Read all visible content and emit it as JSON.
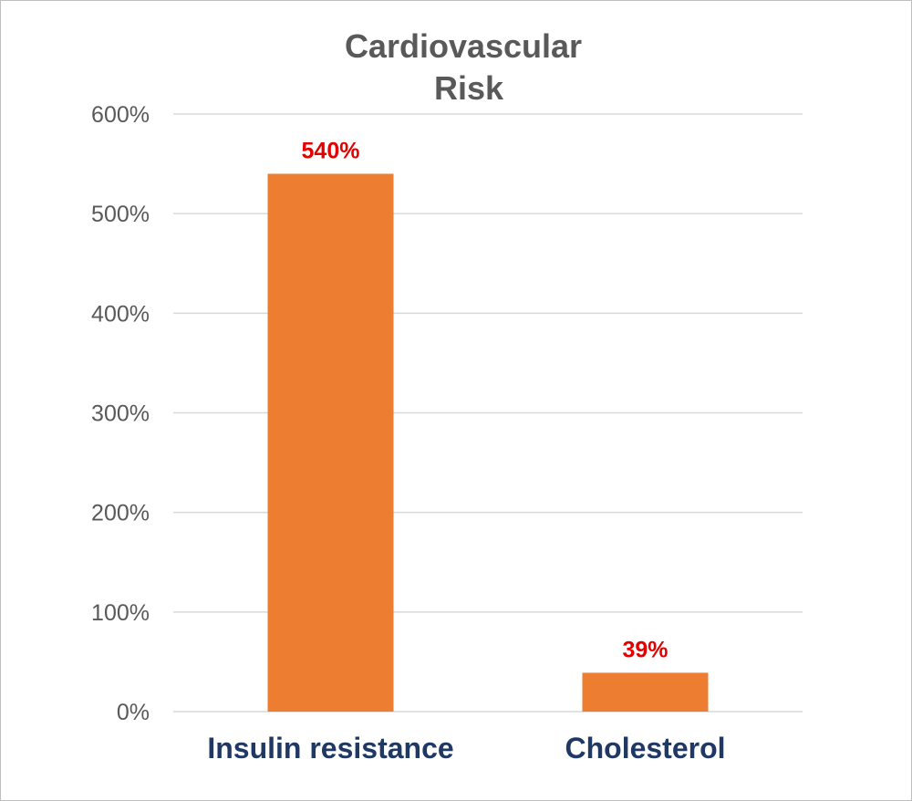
{
  "chart_data": {
    "type": "bar",
    "title": [
      "Cardiovascular",
      "Risk"
    ],
    "xlabel": "",
    "ylabel": "",
    "categories": [
      "Insulin resistance",
      "Cholesterol"
    ],
    "values": [
      540,
      39
    ],
    "data_labels": [
      "540%",
      "39%"
    ],
    "ylim": [
      0,
      600
    ],
    "yticks": [
      0,
      100,
      200,
      300,
      400,
      500,
      600
    ],
    "ytick_labels": [
      "0%",
      "100%",
      "200%",
      "300%",
      "400%",
      "500%",
      "600%"
    ],
    "grid": true,
    "legend": "none",
    "colors": {
      "bar": "#ed7d31",
      "data_label": "#e50000",
      "category_label": "#1f3864",
      "title": "#595959"
    }
  }
}
